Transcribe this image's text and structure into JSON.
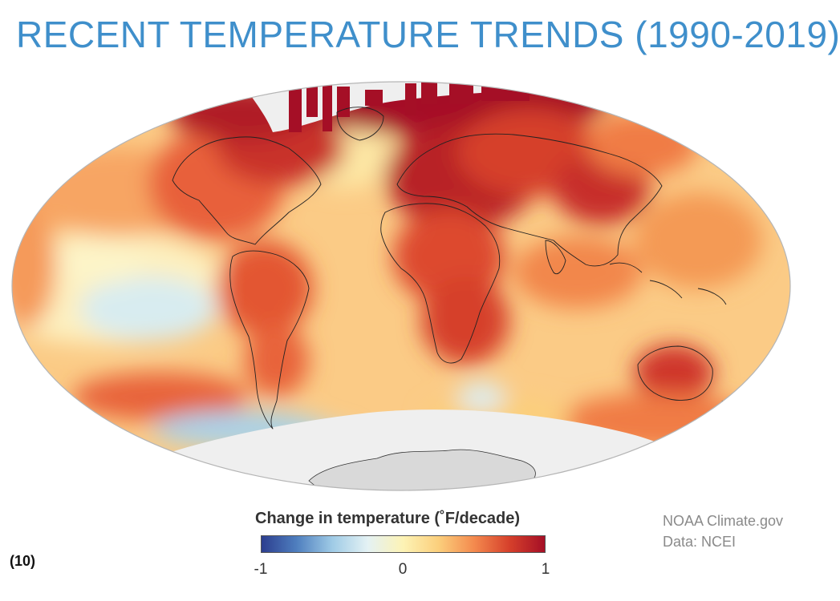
{
  "title": "RECENT TEMPERATURE TRENDS (1990-2019)",
  "legend": {
    "title": "Change in temperature (˚F/decade)",
    "min_label": "-1",
    "mid_label": "0",
    "max_label": "1",
    "range": [
      -1,
      1
    ],
    "colors": [
      "#2c3e8f",
      "#4f7fbf",
      "#9fcbe6",
      "#e4f2f4",
      "#fdf3b5",
      "#fbcf7c",
      "#f48a4e",
      "#d6402b",
      "#a50f26"
    ]
  },
  "credits": {
    "line1": "NOAA Climate.gov",
    "line2": "Data: NCEI"
  },
  "figure_number": "(10)",
  "map": {
    "projection": "hammer-equal-area",
    "no_data_color": "#efefef",
    "land_outline_color": "#222222"
  }
}
